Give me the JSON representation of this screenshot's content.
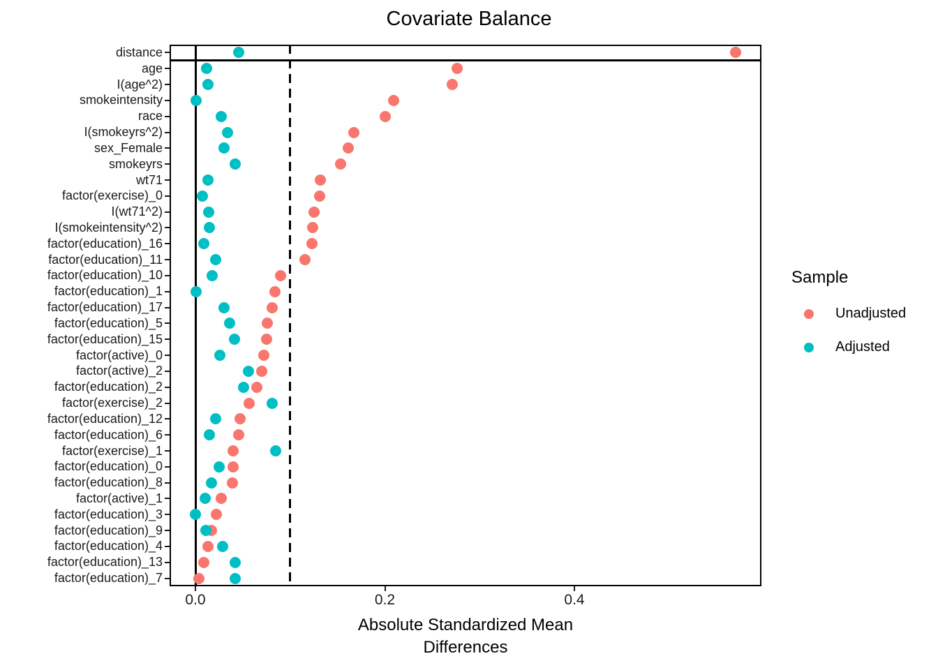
{
  "title": "Covariate Balance",
  "axes": {
    "x_label_line1": "Absolute Standardized Mean",
    "x_label_line2": "Differences",
    "x_ticks": [
      "0.0",
      "0.2",
      "0.4"
    ],
    "x_tick_values": [
      0.0,
      0.2,
      0.4
    ]
  },
  "legend": {
    "title": "Sample",
    "items": [
      {
        "label": "Unadjusted",
        "color": "#F8766D"
      },
      {
        "label": "Adjusted",
        "color": "#00BFC4"
      }
    ]
  },
  "reference_lines": {
    "solid_vline_x": 0.0,
    "dashed_vline_x": 0.1,
    "hline_below_first_row": true
  },
  "chart_data": {
    "type": "scatter",
    "title": "Covariate Balance",
    "xlabel": "Absolute Standardized Mean Differences",
    "ylabel": "",
    "xlim": [
      -0.027,
      0.597
    ],
    "grid": false,
    "legend_position": "right",
    "categories": [
      "distance",
      "age",
      "I(age^2)",
      "smokeintensity",
      "race",
      "I(smokeyrs^2)",
      "sex_Female",
      "smokeyrs",
      "wt71",
      "factor(exercise)_0",
      "I(wt71^2)",
      "I(smokeintensity^2)",
      "factor(education)_16",
      "factor(education)_11",
      "factor(education)_10",
      "factor(education)_1",
      "factor(education)_17",
      "factor(education)_5",
      "factor(education)_15",
      "factor(active)_0",
      "factor(active)_2",
      "factor(education)_2",
      "factor(exercise)_2",
      "factor(education)_12",
      "factor(education)_6",
      "factor(exercise)_1",
      "factor(education)_0",
      "factor(education)_8",
      "factor(active)_1",
      "factor(education)_3",
      "factor(education)_9",
      "factor(education)_4",
      "factor(education)_13",
      "factor(education)_7"
    ],
    "series": [
      {
        "name": "Unadjusted",
        "color": "#F8766D",
        "values": [
          0.57,
          0.276,
          0.271,
          0.209,
          0.2,
          0.167,
          0.161,
          0.153,
          0.132,
          0.131,
          0.125,
          0.124,
          0.123,
          0.116,
          0.09,
          0.084,
          0.081,
          0.076,
          0.075,
          0.072,
          0.07,
          0.065,
          0.057,
          0.047,
          0.046,
          0.04,
          0.04,
          0.039,
          0.027,
          0.022,
          0.017,
          0.013,
          0.009,
          0.004
        ]
      },
      {
        "name": "Adjusted",
        "color": "#00BFC4",
        "values": [
          0.046,
          0.012,
          0.013,
          0.001,
          0.027,
          0.034,
          0.03,
          0.042,
          0.013,
          0.007,
          0.014,
          0.015,
          0.009,
          0.021,
          0.018,
          0.001,
          0.03,
          0.036,
          0.041,
          0.026,
          0.056,
          0.051,
          0.081,
          0.021,
          0.015,
          0.085,
          0.025,
          0.017,
          0.01,
          0.0,
          0.011,
          0.029,
          0.042,
          0.042
        ]
      }
    ]
  }
}
